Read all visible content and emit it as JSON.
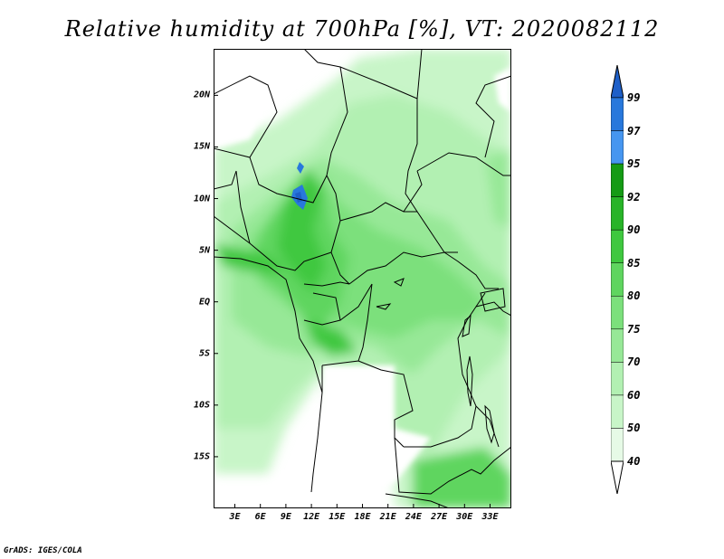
{
  "title": "Relative humidity at 700hPa [%], VT: 2020082112",
  "footer": "GrADS: IGES/COLA",
  "map": {
    "lat_ticks": [
      {
        "label": "20N",
        "value": 20
      },
      {
        "label": "15N",
        "value": 15
      },
      {
        "label": "10N",
        "value": 10
      },
      {
        "label": "5N",
        "value": 5
      },
      {
        "label": "EQ",
        "value": 0
      },
      {
        "label": "5S",
        "value": -5
      },
      {
        "label": "10S",
        "value": -10
      },
      {
        "label": "15S",
        "value": -15
      }
    ],
    "lon_ticks": [
      {
        "label": "3E",
        "value": 3
      },
      {
        "label": "6E",
        "value": 6
      },
      {
        "label": "9E",
        "value": 9
      },
      {
        "label": "12E",
        "value": 12
      },
      {
        "label": "15E",
        "value": 15
      },
      {
        "label": "18E",
        "value": 18
      },
      {
        "label": "21E",
        "value": 21
      },
      {
        "label": "24E",
        "value": 24
      },
      {
        "label": "27E",
        "value": 27
      },
      {
        "label": "30E",
        "value": 30
      },
      {
        "label": "33E",
        "value": 33
      }
    ],
    "lon_range": [
      0.5,
      35.5
    ],
    "lat_range": [
      -20,
      24.5
    ]
  },
  "colorbar": {
    "levels": [
      {
        "label": "40",
        "color": "#e6fae6"
      },
      {
        "label": "50",
        "color": "#c8f5c8"
      },
      {
        "label": "60",
        "color": "#b2f0b2"
      },
      {
        "label": "70",
        "color": "#97e897"
      },
      {
        "label": "75",
        "color": "#7ce07c"
      },
      {
        "label": "80",
        "color": "#5fd55f"
      },
      {
        "label": "85",
        "color": "#3fc83f"
      },
      {
        "label": "90",
        "color": "#28b428"
      },
      {
        "label": "92",
        "color": "#159b15"
      },
      {
        "label": "95",
        "color": "#4696f0"
      },
      {
        "label": "97",
        "color": "#2878dc"
      },
      {
        "label": "99",
        "color": ""
      }
    ],
    "top_color": "#1e5fc8",
    "bottom_color": "#ffffff"
  }
}
